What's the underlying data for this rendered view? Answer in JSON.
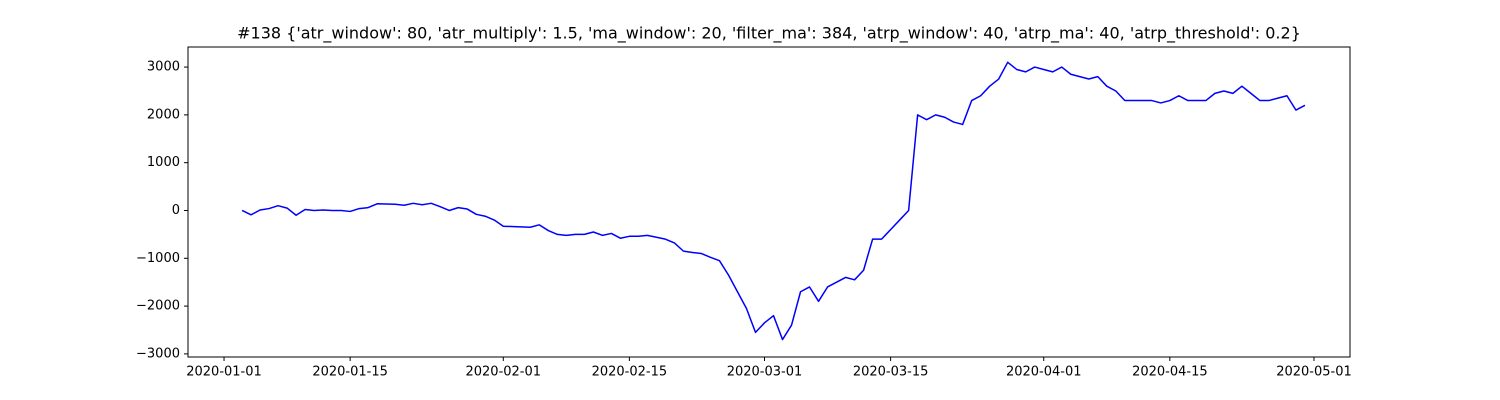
{
  "chart_data": {
    "type": "line",
    "title": "#138 {'atr_window': 80, 'atr_multiply': 1.5, 'ma_window': 20, 'filter_ma': 384, 'atrp_window': 40, 'atrp_ma': 40, 'atrp_threshold': 0.2}",
    "color": "#0000ff",
    "x": [
      "2020-01-03",
      "2020-01-04",
      "2020-01-05",
      "2020-01-06",
      "2020-01-07",
      "2020-01-08",
      "2020-01-09",
      "2020-01-10",
      "2020-01-11",
      "2020-01-12",
      "2020-01-13",
      "2020-01-14",
      "2020-01-15",
      "2020-01-16",
      "2020-01-17",
      "2020-01-18",
      "2020-01-20",
      "2020-01-21",
      "2020-01-22",
      "2020-01-23",
      "2020-01-24",
      "2020-01-25",
      "2020-01-26",
      "2020-01-27",
      "2020-01-28",
      "2020-01-29",
      "2020-01-30",
      "2020-01-31",
      "2020-02-01",
      "2020-02-04",
      "2020-02-05",
      "2020-02-06",
      "2020-02-07",
      "2020-02-08",
      "2020-02-09",
      "2020-02-10",
      "2020-02-11",
      "2020-02-12",
      "2020-02-13",
      "2020-02-14",
      "2020-02-15",
      "2020-02-16",
      "2020-02-17",
      "2020-02-18",
      "2020-02-19",
      "2020-02-20",
      "2020-02-21",
      "2020-02-22",
      "2020-02-23",
      "2020-02-24",
      "2020-02-25",
      "2020-02-26",
      "2020-02-27",
      "2020-02-28",
      "2020-02-29",
      "2020-03-01",
      "2020-03-02",
      "2020-03-03",
      "2020-03-04",
      "2020-03-05",
      "2020-03-06",
      "2020-03-07",
      "2020-03-08",
      "2020-03-09",
      "2020-03-10",
      "2020-03-11",
      "2020-03-12",
      "2020-03-13",
      "2020-03-14",
      "2020-03-15",
      "2020-03-16",
      "2020-03-17",
      "2020-03-18",
      "2020-03-19",
      "2020-03-20",
      "2020-03-21",
      "2020-03-22",
      "2020-03-23",
      "2020-03-24",
      "2020-03-25",
      "2020-03-26",
      "2020-03-27",
      "2020-03-28",
      "2020-03-29",
      "2020-03-30",
      "2020-03-31",
      "2020-04-01",
      "2020-04-02",
      "2020-04-03",
      "2020-04-04",
      "2020-04-05",
      "2020-04-06",
      "2020-04-07",
      "2020-04-08",
      "2020-04-09",
      "2020-04-10",
      "2020-04-13",
      "2020-04-14",
      "2020-04-15",
      "2020-04-16",
      "2020-04-17",
      "2020-04-18",
      "2020-04-19",
      "2020-04-20",
      "2020-04-21",
      "2020-04-22",
      "2020-04-23",
      "2020-04-24",
      "2020-04-25",
      "2020-04-26",
      "2020-04-27",
      "2020-04-28",
      "2020-04-29",
      "2020-04-30"
    ],
    "values": [
      0,
      -90,
      10,
      40,
      100,
      50,
      -100,
      20,
      0,
      10,
      0,
      0,
      -20,
      40,
      60,
      140,
      130,
      110,
      150,
      120,
      150,
      80,
      0,
      60,
      30,
      -80,
      -120,
      -200,
      -330,
      -350,
      -300,
      -420,
      -500,
      -520,
      -500,
      -500,
      -450,
      -520,
      -480,
      -580,
      -540,
      -540,
      -520,
      -560,
      -600,
      -680,
      -850,
      -880,
      -900,
      -980,
      -1050,
      -1350,
      -1700,
      -2050,
      -2550,
      -2350,
      -2200,
      -2700,
      -2400,
      -1700,
      -1600,
      -1900,
      -1600,
      -1500,
      -1400,
      -1450,
      -1250,
      -600,
      -600,
      -400,
      -200,
      0,
      2000,
      1900,
      2000,
      1950,
      1850,
      1800,
      2300,
      2400,
      2600,
      2750,
      3100,
      2950,
      2900,
      3000,
      2950,
      2900,
      3000,
      2850,
      2800,
      2750,
      2800,
      2600,
      2500,
      2300,
      2300,
      2250,
      2300,
      2400,
      2300,
      2300,
      2300,
      2450,
      2500,
      2450,
      2600,
      2450,
      2300,
      2300,
      2350,
      2400,
      2100,
      2200
    ],
    "xlim": [
      "2019-12-28",
      "2020-05-05"
    ],
    "xticks": [
      "2020-01-01",
      "2020-01-15",
      "2020-02-01",
      "2020-02-15",
      "2020-03-01",
      "2020-03-15",
      "2020-04-01",
      "2020-04-15",
      "2020-05-01"
    ],
    "ylim": [
      -3065,
      3420
    ],
    "yticks": [
      {
        "value": -3000,
        "label": "−3000"
      },
      {
        "value": -2000,
        "label": "−2000"
      },
      {
        "value": -1000,
        "label": "−1000"
      },
      0,
      1000,
      2000,
      3000
    ]
  }
}
